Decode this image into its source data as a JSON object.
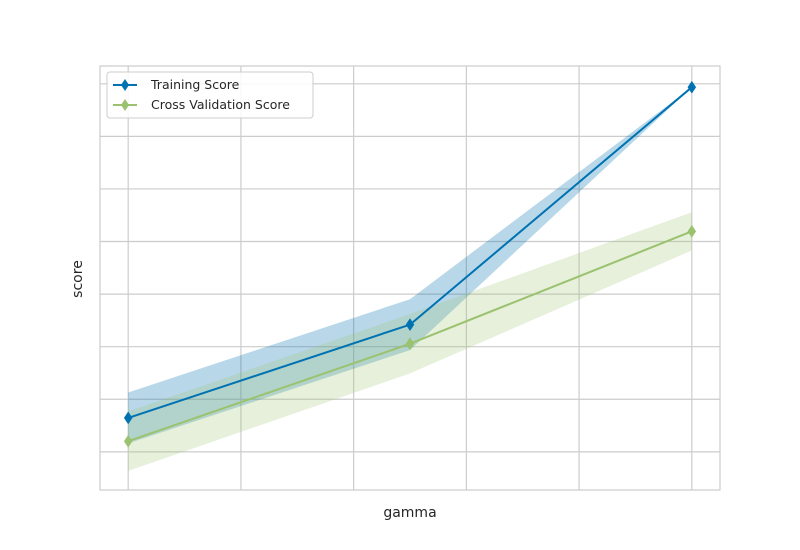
{
  "chart_data": {
    "type": "line",
    "xlabel": "gamma",
    "ylabel": "score",
    "x": [
      0,
      1,
      2
    ],
    "xlim": [
      -0.1,
      2.1
    ],
    "ylim": [
      0,
      1
    ],
    "grid": true,
    "legend_position": "top-left",
    "series": [
      {
        "name": "Training Score",
        "color": "#0072b2",
        "marker": "diamond",
        "values": [
          0.17,
          0.39,
          0.95
        ],
        "band_lower": [
          0.11,
          0.33,
          0.95
        ],
        "band_upper": [
          0.23,
          0.45,
          0.95
        ]
      },
      {
        "name": "Cross Validation Score",
        "color": "#9bc26e",
        "marker": "diamond",
        "values": [
          0.115,
          0.345,
          0.61
        ],
        "band_lower": [
          0.045,
          0.275,
          0.565
        ],
        "band_upper": [
          0.185,
          0.415,
          0.655
        ]
      }
    ]
  }
}
